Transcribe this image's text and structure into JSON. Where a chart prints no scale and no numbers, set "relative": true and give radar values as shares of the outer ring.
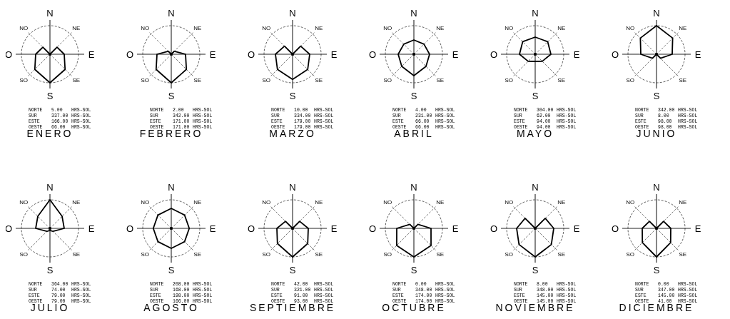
{
  "chart_data": [
    {
      "type": "radar",
      "title": "ENERO",
      "categories": [
        "N",
        "NE",
        "E",
        "SE",
        "S",
        "SO",
        "O",
        "NO"
      ],
      "relative": true,
      "color": "#000000",
      "values": [
        0,
        0.35,
        0.5,
        0.75,
        1,
        0.75,
        0.5,
        0.35
      ],
      "annotations": [
        "NORTE 5.00 HRS-SOL",
        "SUR 337.00 HRS-SOL",
        "ESTE 166.00 HRS-SOL",
        "OESTE 66.00 HRS-SOL"
      ]
    },
    {
      "type": "radar",
      "title": "FEBRERO",
      "categories": [
        "N",
        "NE",
        "E",
        "SE",
        "S",
        "SO",
        "O",
        "NO"
      ],
      "relative": true,
      "color": "#000000",
      "values": [
        0,
        0.15,
        0.5,
        0.75,
        1,
        0.75,
        0.5,
        0.15
      ],
      "annotations": [
        "NORTE 2.00 HRS-SOL",
        "SUR 342.00 HRS-SOL",
        "ESTE 171.00 HRS-SOL",
        "OESTE 171.00 HRS-SOL"
      ]
    },
    {
      "type": "radar",
      "title": "MARZO",
      "categories": [
        "N",
        "NE",
        "E",
        "SE",
        "S",
        "SO",
        "O",
        "NO"
      ],
      "relative": true,
      "color": "#000000",
      "values": [
        0,
        0.4,
        0.6,
        0.75,
        0.88,
        0.75,
        0.6,
        0.4
      ],
      "annotations": [
        "NORTE 10.00 HRS-SOL",
        "SUR 334.00 HRS-SOL",
        "ESTE 179.00 HRS-SOL",
        "OESTE 179.00 HRS-SOL"
      ]
    },
    {
      "type": "radar",
      "title": "ABRIL",
      "categories": [
        "N",
        "NE",
        "E",
        "SE",
        "S",
        "SO",
        "O",
        "NO"
      ],
      "relative": true,
      "color": "#000000",
      "values": [
        0.5,
        0.5,
        0.55,
        0.6,
        0.75,
        0.6,
        0.55,
        0.5
      ],
      "annotations": [
        "NORTE 4.00 HRS-SOL",
        "SUR 231.00 HRS-SOL",
        "ESTE 66.00 HRS-SOL",
        "OESTE 66.00 HRS-SOL"
      ]
    },
    {
      "type": "radar",
      "title": "MAYO",
      "categories": [
        "N",
        "NE",
        "E",
        "SE",
        "S",
        "SO",
        "O",
        "NO"
      ],
      "relative": true,
      "color": "#000000",
      "values": [
        0.6,
        0.62,
        0.55,
        0.35,
        0.25,
        0.35,
        0.55,
        0.62
      ],
      "annotations": [
        "NORTE 304.00 HRS-SOL",
        "SUR 62.00 HRS-SOL",
        "ESTE 94.00 HRS-SOL",
        "OESTE 94.00 HRS-SOL"
      ]
    },
    {
      "type": "radar",
      "title": "JUNIO",
      "categories": [
        "N",
        "NE",
        "E",
        "SE",
        "S",
        "SO",
        "O",
        "NO"
      ],
      "relative": true,
      "color": "#000000",
      "values": [
        1,
        0.8,
        0.55,
        0.2,
        0,
        0.2,
        0.55,
        0.8
      ],
      "annotations": [
        "NORTE 342.00 HRS-SOL",
        "SUR 8.00 HRS-SOL",
        "ESTE 98.00 HRS-SOL",
        "OESTE 98.00 HRS-SOL"
      ]
    },
    {
      "type": "radar",
      "title": "JULIO",
      "categories": [
        "N",
        "NE",
        "E",
        "SE",
        "S",
        "SO",
        "O",
        "NO"
      ],
      "relative": true,
      "color": "#000000",
      "values": [
        1,
        0.6,
        0.5,
        0.15,
        0.07,
        0.15,
        0.5,
        0.6
      ],
      "annotations": [
        "NORTE 364.00 HRS-SOL",
        "SUR 74.00 HRS-SOL",
        "ESTE 79.00 HRS-SOL",
        "OESTE 79.00 HRS-SOL"
      ]
    },
    {
      "type": "radar",
      "title": "AGOSTO",
      "categories": [
        "N",
        "NE",
        "E",
        "SE",
        "S",
        "SO",
        "O",
        "NO"
      ],
      "relative": true,
      "color": "#000000",
      "values": [
        0.7,
        0.66,
        0.63,
        0.66,
        0.7,
        0.66,
        0.63,
        0.66
      ],
      "annotations": [
        "NORTE 208.00 HRS-SOL",
        "SUR 168.00 HRS-SOL",
        "ESTE 198.00 HRS-SOL",
        "OESTE 166.00 HRS-SOL"
      ]
    },
    {
      "type": "radar",
      "title": "SEPTIEMBRE",
      "categories": [
        "N",
        "NE",
        "E",
        "SE",
        "S",
        "SO",
        "O",
        "NO"
      ],
      "relative": true,
      "color": "#000000",
      "values": [
        0,
        0.35,
        0.55,
        0.75,
        1,
        0.75,
        0.55,
        0.35
      ],
      "annotations": [
        "NORTE 42.00 HRS-SOL",
        "SUR 321.00 HRS-SOL",
        "ESTE 91.00 HRS-SOL",
        "OESTE 93.00 HRS-SOL"
      ]
    },
    {
      "type": "radar",
      "title": "OCTUBRE",
      "categories": [
        "N",
        "NE",
        "E",
        "SE",
        "S",
        "SO",
        "O",
        "NO"
      ],
      "relative": true,
      "color": "#000000",
      "values": [
        0,
        0.2,
        0.6,
        0.85,
        1,
        0.85,
        0.6,
        0.2
      ],
      "annotations": [
        "NORTE 0.00 HRS-SOL",
        "SUR 348.00 HRS-SOL",
        "ESTE 174.00 HRS-SOL",
        "OESTE 174.00 HRS-SOL"
      ]
    },
    {
      "type": "radar",
      "title": "NOVIEMBRE",
      "categories": [
        "N",
        "NE",
        "E",
        "SE",
        "S",
        "SO",
        "O",
        "NO"
      ],
      "relative": true,
      "color": "#000000",
      "values": [
        0,
        0.5,
        0.65,
        0.8,
        1,
        0.8,
        0.65,
        0.5
      ],
      "annotations": [
        "NORTE 8.00 HRS-SOL",
        "SUR 348.00 HRS-SOL",
        "ESTE 145.00 HRS-SOL",
        "OESTE 145.00 HRS-SOL"
      ]
    },
    {
      "type": "radar",
      "title": "DICIEMBRE",
      "categories": [
        "N",
        "NE",
        "E",
        "SE",
        "S",
        "SO",
        "O",
        "NO"
      ],
      "relative": true,
      "color": "#000000",
      "values": [
        0,
        0.35,
        0.5,
        0.7,
        1,
        0.7,
        0.5,
        0.35
      ],
      "annotations": [
        "NORTE 0.00 HRS-SOL",
        "SUR 347.00 HRS-SOL",
        "ESTE 145.00 HRS-SOL",
        "OESTE 41.00 HRS-SOL"
      ]
    }
  ]
}
